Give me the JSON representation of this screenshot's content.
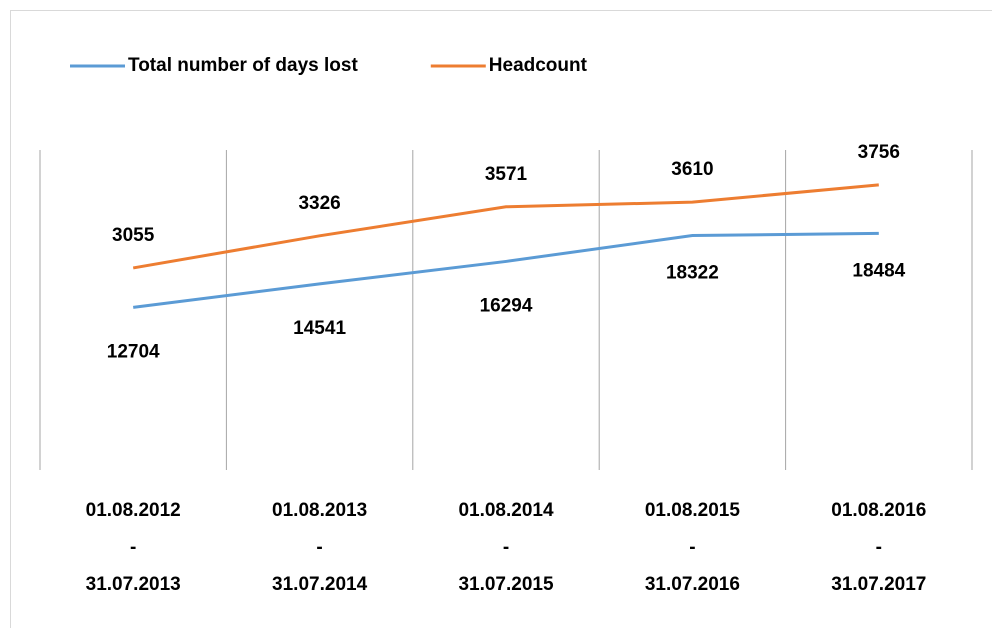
{
  "chart_data": {
    "type": "line",
    "categories": [
      [
        "01.08.2012",
        "-",
        "31.07.2013"
      ],
      [
        "01.08.2013",
        "-",
        "31.07.2014"
      ],
      [
        "01.08.2014",
        "-",
        "31.07.2015"
      ],
      [
        "01.08.2015",
        "-",
        "31.07.2016"
      ],
      [
        "01.08.2016",
        "-",
        "31.07.2017"
      ]
    ],
    "series": [
      {
        "name": "Total number of days lost",
        "color": "#5b9bd5",
        "values": [
          12704,
          14541,
          16294,
          18322,
          18484
        ]
      },
      {
        "name": "Headcount",
        "color": "#ed7d31",
        "axis": "y2",
        "values": [
          3055,
          3326,
          3571,
          3610,
          3756
        ]
      }
    ],
    "ylim": [
      0,
      25000
    ],
    "y2lim": [
      1350,
      4050
    ],
    "legend": "top"
  }
}
